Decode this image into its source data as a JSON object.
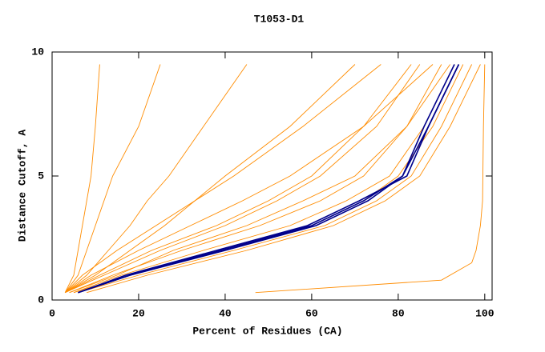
{
  "chart_data": {
    "type": "line",
    "title": "T1053-D1",
    "x_label": "Percent of Residues (CA)",
    "y_label": "Distance Cutoff, A",
    "xlim": [
      0,
      101.7
    ],
    "ylim": [
      0,
      10
    ],
    "xticks": [
      0,
      20,
      40,
      60,
      80,
      100
    ],
    "yticks": [
      0,
      5,
      10
    ],
    "series": [
      {
        "color": "#ff8c00",
        "x": [
          3,
          5,
          6,
          7,
          8,
          9,
          10,
          11
        ],
        "y": [
          0.3,
          1,
          2,
          3,
          4,
          5,
          7,
          9.5
        ]
      },
      {
        "color": "#ff8c00",
        "x": [
          3,
          6,
          8,
          10,
          12,
          14,
          20,
          25
        ],
        "y": [
          0.3,
          1,
          2,
          3,
          4,
          5,
          7,
          9.5
        ]
      },
      {
        "color": "#ff8c00",
        "x": [
          3,
          8,
          13,
          18,
          22,
          27,
          35,
          45
        ],
        "y": [
          0.3,
          1,
          2,
          3,
          4,
          5,
          7,
          9.5
        ]
      },
      {
        "color": "#ff8c00",
        "x": [
          3,
          10,
          18,
          26,
          33,
          40,
          55,
          70
        ],
        "y": [
          0.3,
          1,
          2,
          3,
          4,
          5,
          7,
          9.5
        ]
      },
      {
        "color": "#ff8c00",
        "x": [
          3,
          12,
          25,
          40,
          52,
          62,
          75,
          85
        ],
        "y": [
          0.3,
          1,
          2,
          3,
          4,
          5,
          7,
          9.5
        ]
      },
      {
        "color": "#ff8c00",
        "x": [
          4,
          14,
          30,
          48,
          62,
          72,
          82,
          90
        ],
        "y": [
          0.3,
          1,
          2,
          3,
          4,
          5,
          7,
          9.5
        ]
      },
      {
        "color": "#ff8c00",
        "x": [
          5,
          16,
          35,
          55,
          68,
          78,
          86,
          93
        ],
        "y": [
          0.3,
          1,
          2,
          3,
          4,
          5,
          7,
          9.5
        ]
      },
      {
        "color": "#ff8c00",
        "x": [
          5,
          18,
          40,
          60,
          72,
          80,
          88,
          95
        ],
        "y": [
          0.3,
          1,
          2,
          3,
          4,
          5,
          7,
          9.5
        ]
      },
      {
        "color": "#ff8c00",
        "x": [
          6,
          20,
          42,
          63,
          75,
          83,
          90,
          97
        ],
        "y": [
          0.3,
          1,
          2,
          3,
          4,
          5,
          7,
          9.5
        ]
      },
      {
        "color": "#ff8c00",
        "x": [
          8,
          22,
          45,
          65,
          77,
          85,
          92,
          99
        ],
        "y": [
          0.3,
          1,
          2,
          3,
          4,
          5,
          7,
          9.5
        ]
      },
      {
        "color": "#ff8c00",
        "x": [
          4,
          15,
          28,
          45,
          58,
          70,
          82,
          92
        ],
        "y": [
          0.3,
          1,
          2,
          3,
          4,
          5,
          7,
          9.5
        ]
      },
      {
        "color": "#ff8c00",
        "x": [
          3,
          9,
          20,
          32,
          44,
          55,
          72,
          88
        ],
        "y": [
          0.3,
          1,
          2,
          3,
          4,
          5,
          7,
          9.5
        ]
      },
      {
        "color": "#ff8c00",
        "x": [
          3,
          7,
          15,
          24,
          33,
          42,
          58,
          76
        ],
        "y": [
          0.3,
          1,
          2,
          3,
          4,
          5,
          7,
          9.5
        ]
      },
      {
        "color": "#ff8c00",
        "x": [
          3,
          11,
          23,
          38,
          50,
          60,
          72,
          83
        ],
        "y": [
          0.3,
          1,
          2,
          3,
          4,
          5,
          7,
          9.5
        ]
      },
      {
        "color": "#ff8c00",
        "x": [
          47,
          90,
          97,
          98,
          99,
          99.5,
          99.7,
          100
        ],
        "y": [
          0.3,
          0.8,
          1.5,
          2,
          3,
          4,
          7,
          9.5
        ]
      },
      {
        "color": "#00008b",
        "x": [
          6,
          18,
          39,
          60,
          72,
          81,
          86,
          93
        ],
        "y": [
          0.3,
          1,
          2,
          3,
          4,
          5,
          7,
          9.5
        ]
      },
      {
        "color": "#00008b",
        "x": [
          6,
          17,
          38,
          59,
          71,
          82,
          87,
          94
        ],
        "y": [
          0.3,
          1,
          2,
          3,
          4,
          5,
          7,
          9.5
        ]
      },
      {
        "color": "#00008b",
        "x": [
          6,
          18,
          40,
          61,
          73,
          81,
          87,
          94
        ],
        "y": [
          0.3,
          1,
          2,
          3,
          4,
          5,
          7,
          9.5
        ]
      }
    ]
  }
}
